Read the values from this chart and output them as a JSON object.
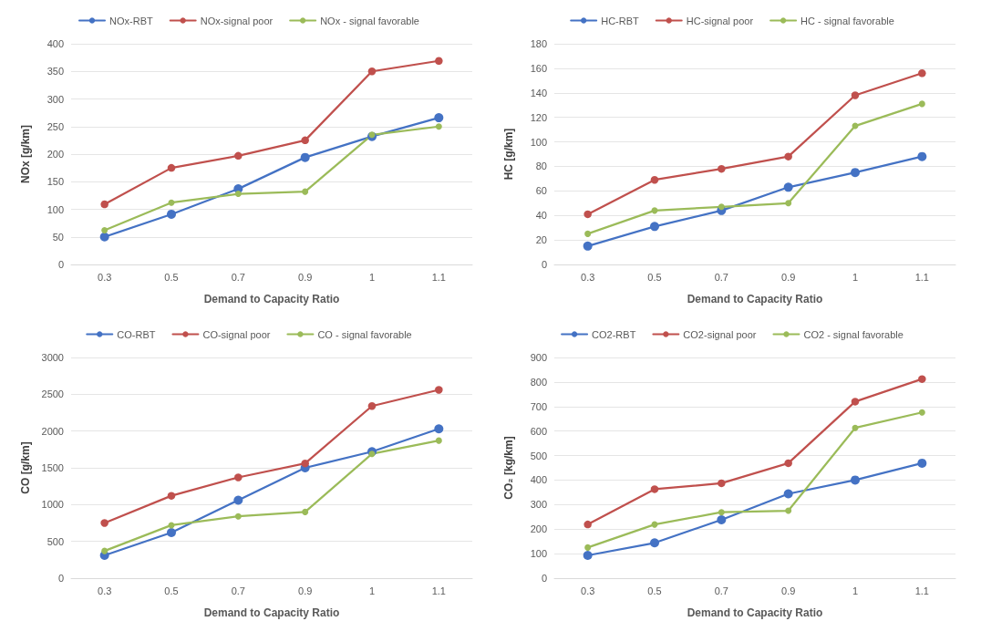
{
  "chart_data": [
    {
      "type": "line",
      "categories": [
        "0.3",
        "0.5",
        "0.7",
        "0.9",
        "1",
        "1.1"
      ],
      "xlabel": "Demand to Capacity Ratio",
      "ylabel": "NOx [g/km]",
      "ylim": [
        0,
        400
      ],
      "yticks": [
        0,
        50,
        100,
        150,
        200,
        250,
        300,
        350,
        400
      ],
      "grid": "y",
      "legend": "top",
      "marker": "circle",
      "line_style": "solid",
      "series": [
        {
          "name": "NOx-RBT",
          "color": "#4472c4",
          "values": [
            50,
            91,
            137,
            194,
            232,
            266
          ]
        },
        {
          "name": "NOx-signal poor",
          "color": "#c0504d",
          "values": [
            109,
            175,
            197,
            225,
            350,
            369
          ]
        },
        {
          "name": "NOx - signal favorable",
          "color": "#9bbb59",
          "values": [
            62,
            112,
            128,
            132,
            235,
            250
          ]
        }
      ]
    },
    {
      "type": "line",
      "categories": [
        "0.3",
        "0.5",
        "0.7",
        "0.9",
        "1",
        "1.1"
      ],
      "xlabel": "Demand to Capacity Ratio",
      "ylabel": "HC [g/km]",
      "ylim": [
        0,
        180
      ],
      "yticks": [
        0,
        20,
        40,
        60,
        80,
        100,
        120,
        140,
        160,
        180
      ],
      "grid": "y",
      "legend": "top",
      "marker": "circle",
      "line_style": "solid",
      "series": [
        {
          "name": "HC-RBT",
          "color": "#4472c4",
          "values": [
            15,
            31,
            44,
            63,
            75,
            88
          ]
        },
        {
          "name": "HC-signal poor",
          "color": "#c0504d",
          "values": [
            41,
            69,
            78,
            88,
            138,
            156
          ]
        },
        {
          "name": "HC - signal favorable",
          "color": "#9bbb59",
          "values": [
            25,
            44,
            47,
            50,
            113,
            131
          ]
        }
      ]
    },
    {
      "type": "line",
      "categories": [
        "0.3",
        "0.5",
        "0.7",
        "0.9",
        "1",
        "1.1"
      ],
      "xlabel": "Demand to Capacity Ratio",
      "ylabel": "CO [g/km]",
      "ylim": [
        0,
        3000
      ],
      "yticks": [
        0,
        500,
        1000,
        1500,
        2000,
        2500,
        3000
      ],
      "grid": "y",
      "legend": "top",
      "marker": "circle",
      "line_style": "solid",
      "series": [
        {
          "name": "CO-RBT",
          "color": "#4472c4",
          "values": [
            310,
            620,
            1060,
            1500,
            1720,
            2030
          ]
        },
        {
          "name": "CO-signal poor",
          "color": "#c0504d",
          "values": [
            750,
            1120,
            1370,
            1560,
            2340,
            2560
          ]
        },
        {
          "name": "CO - signal favorable",
          "color": "#9bbb59",
          "values": [
            370,
            720,
            840,
            900,
            1690,
            1870
          ]
        }
      ]
    },
    {
      "type": "line",
      "categories": [
        "0.3",
        "0.5",
        "0.7",
        "0.9",
        "1",
        "1.1"
      ],
      "xlabel": "Demand to Capacity Ratio",
      "ylabel": "CO₂ [kg/km]",
      "ylim": [
        0,
        900
      ],
      "yticks": [
        0,
        100,
        200,
        300,
        400,
        500,
        600,
        700,
        800,
        900
      ],
      "grid": "y",
      "legend": "top",
      "marker": "circle",
      "line_style": "solid",
      "series": [
        {
          "name": "CO2-RBT",
          "color": "#4472c4",
          "values": [
            93,
            144,
            238,
            344,
            400,
            469
          ]
        },
        {
          "name": "CO2-signal poor",
          "color": "#c0504d",
          "values": [
            219,
            363,
            387,
            469,
            720,
            812
          ]
        },
        {
          "name": "CO2 - signal favorable",
          "color": "#9bbb59",
          "values": [
            125,
            219,
            269,
            275,
            613,
            676
          ]
        }
      ]
    }
  ]
}
